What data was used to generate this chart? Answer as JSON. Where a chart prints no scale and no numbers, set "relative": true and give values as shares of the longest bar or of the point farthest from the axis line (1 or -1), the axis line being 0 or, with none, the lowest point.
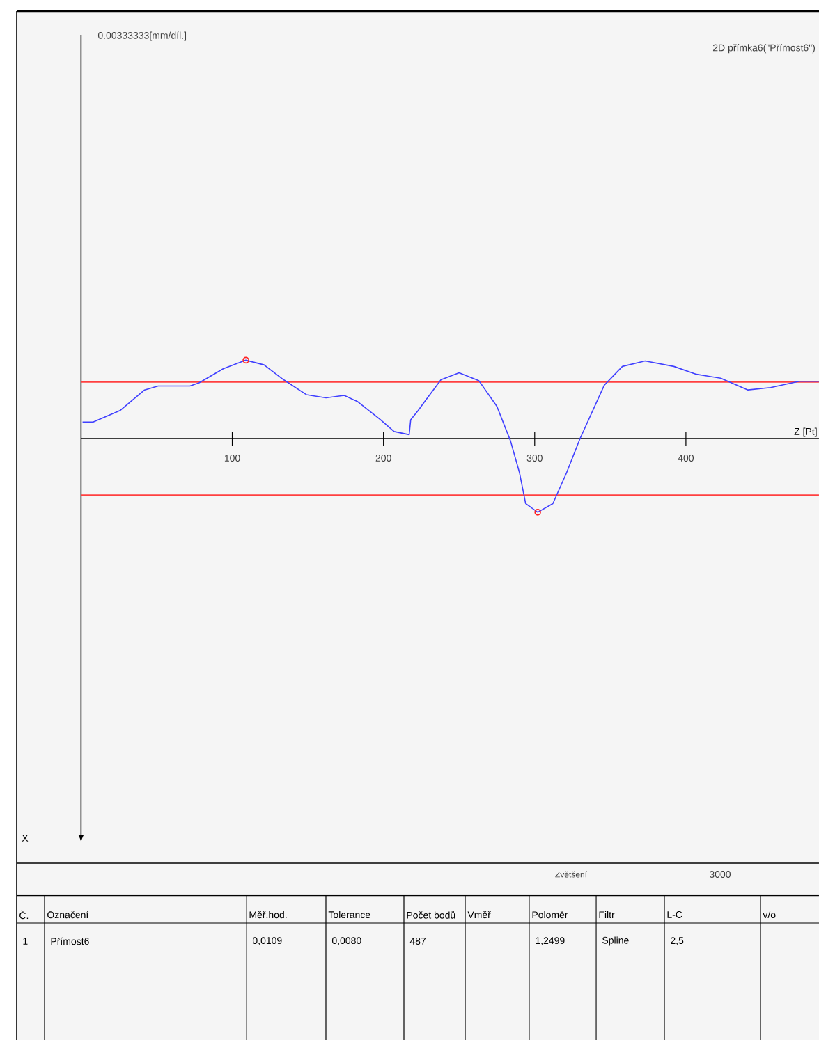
{
  "chart_data": {
    "type": "line",
    "relative": true,
    "title": "2D přímka6(\"Přímost6\")",
    "xlabel": "Z [Pt]",
    "xlim": [
      0,
      488
    ],
    "xticks": [
      100,
      200,
      300,
      400
    ],
    "series": [
      {
        "color": "#4040ff",
        "line_style": "solid",
        "x": [
          1,
          8,
          26,
          42,
          51,
          72,
          78,
          94,
          109,
          121,
          134,
          149,
          162,
          174,
          183,
          198,
          207,
          217,
          218,
          223,
          226,
          238,
          250,
          263,
          275,
          284,
          290,
          294,
          302,
          312,
          321,
          330,
          346,
          358,
          373,
          392,
          407,
          423,
          441,
          456,
          475,
          488
        ],
        "values": [
          0.21,
          0.21,
          0.36,
          0.62,
          0.67,
          0.67,
          0.71,
          0.89,
          1,
          0.94,
          0.75,
          0.56,
          0.52,
          0.55,
          0.47,
          0.24,
          0.09,
          0.05,
          0.24,
          0.36,
          0.44,
          0.75,
          0.84,
          0.74,
          0.41,
          -0.03,
          -0.44,
          -0.83,
          -0.94,
          -0.83,
          -0.44,
          0,
          0.68,
          0.92,
          0.99,
          0.92,
          0.82,
          0.77,
          0.62,
          0.65,
          0.73,
          0.73
        ]
      },
      {
        "type": "scatter",
        "color": "#ff2020",
        "marker": "circle",
        "x": [
          109,
          302
        ],
        "values": [
          1,
          -0.94
        ]
      }
    ],
    "ref_lines": [
      {
        "axis": "y",
        "value": 0.72,
        "color": "#ff4040"
      },
      {
        "axis": "y",
        "value": -0.72,
        "color": "#ff4040"
      }
    ],
    "annotations": [
      "0.00333333[mm/díl.]",
      "Zvětšení",
      "3000",
      "Č.",
      "Označení",
      "Měř.hod.",
      "Tolerance",
      "Počet bodů",
      "Vměř",
      "Poloměr",
      "Filtr",
      "L-C",
      "v/o",
      "1",
      "Přímost6",
      "0,0109",
      "0,0080",
      "487",
      "1,2499",
      "Spline",
      "2,5",
      "X"
    ]
  }
}
